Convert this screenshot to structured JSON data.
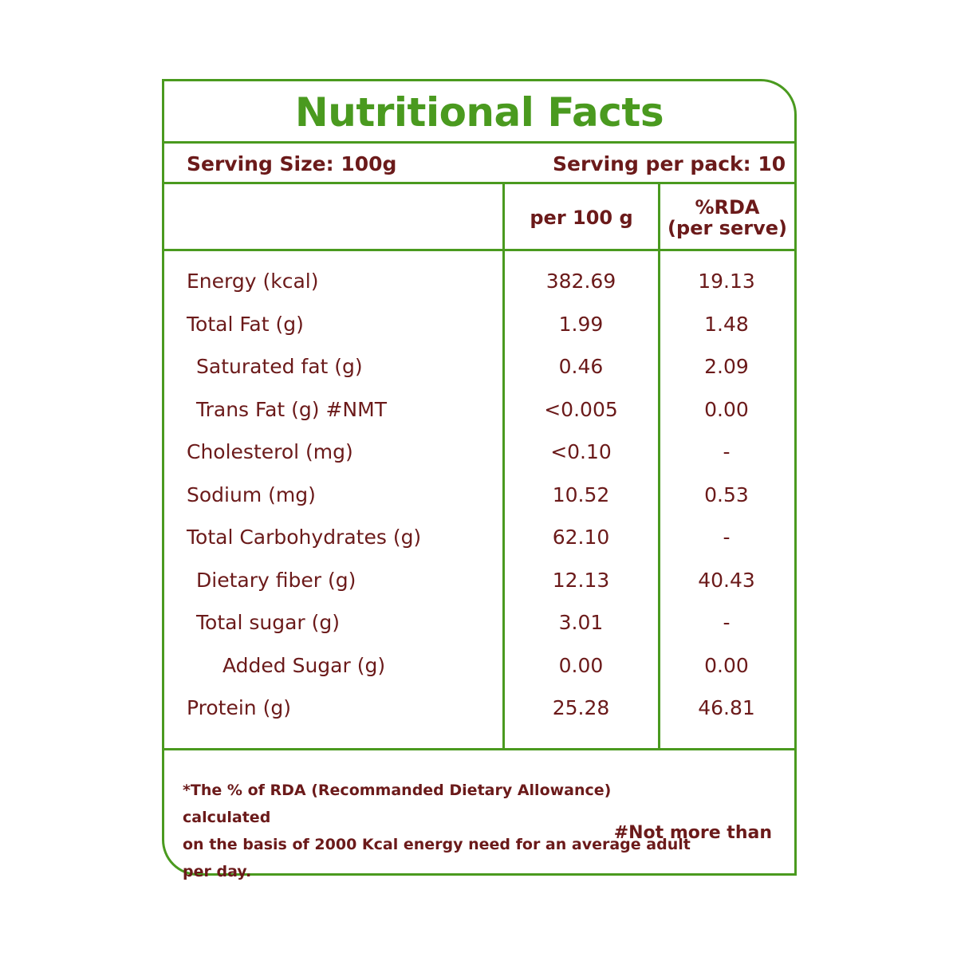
{
  "title": "Nutritional Facts",
  "serving_size": "Serving Size: 100g",
  "serving_per_pack": "Serving per pack: 10",
  "columns": {
    "per100": "per 100 g",
    "rda_line1": "%RDA",
    "rda_line2": "(per serve)"
  },
  "rows": [
    {
      "label": "Energy (kcal)",
      "indent": 0,
      "per100": "382.69",
      "rda": "19.13"
    },
    {
      "label": "Total Fat (g)",
      "indent": 0,
      "per100": "1.99",
      "rda": "1.48"
    },
    {
      "label": "Saturated fat (g)",
      "indent": 1,
      "per100": "0.46",
      "rda": "2.09"
    },
    {
      "label": "Trans Fat (g) #NMT",
      "indent": 1,
      "per100": "<0.005",
      "rda": "0.00"
    },
    {
      "label": "Cholesterol (mg)",
      "indent": 0,
      "per100": "<0.10",
      "rda": "-"
    },
    {
      "label": "Sodium (mg)",
      "indent": 0,
      "per100": "10.52",
      "rda": "0.53"
    },
    {
      "label": "Total Carbohydrates  (g)",
      "indent": 0,
      "per100": "62.10",
      "rda": "-"
    },
    {
      "label": "Dietary fiber (g)",
      "indent": 1,
      "per100": "12.13",
      "rda": "40.43"
    },
    {
      "label": "Total sugar (g)",
      "indent": 1,
      "per100": "3.01",
      "rda": "-"
    },
    {
      "label": "Added Sugar (g)",
      "indent": 2,
      "per100": "0.00",
      "rda": "0.00"
    },
    {
      "label": "Protein (g)",
      "indent": 0,
      "per100": "25.28",
      "rda": "46.81"
    }
  ],
  "footnote": {
    "line1": "*The % of RDA (Recommanded Dietary Allowance) calculated",
    "line2": "on the basis of 2000 Kcal energy need for an average adult",
    "line3": "per day.",
    "nmt": "#Not more than"
  },
  "colors": {
    "border": "#4a9a1f",
    "title": "#4a9a1f",
    "text": "#6b1a1a"
  }
}
